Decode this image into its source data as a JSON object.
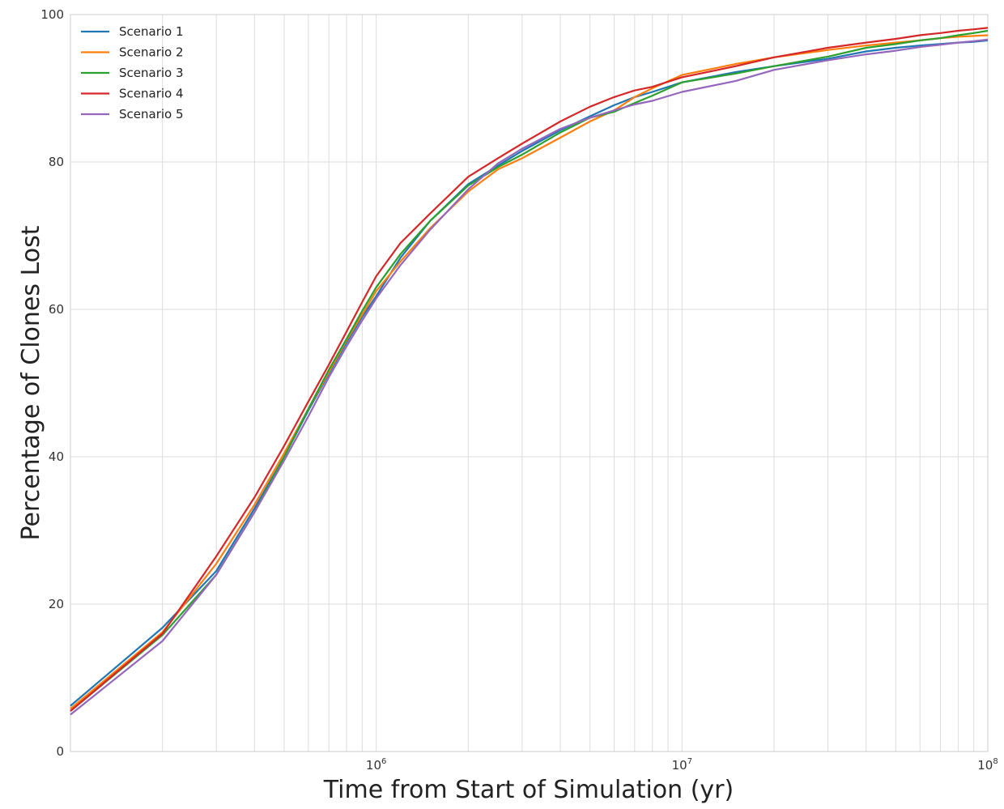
{
  "chart_data": {
    "type": "line",
    "title": "",
    "xlabel": "Time from Start of Simulation (yr)",
    "ylabel": "Percentage of Clones Lost",
    "x_scale": "log",
    "xlim": [
      100000,
      100000000
    ],
    "ylim": [
      0,
      100
    ],
    "x_ticks": [
      {
        "value": 1000000,
        "base": "10",
        "exp": "6"
      },
      {
        "value": 10000000,
        "base": "10",
        "exp": "7"
      },
      {
        "value": 100000000,
        "base": "10",
        "exp": "8"
      }
    ],
    "y_ticks": [
      {
        "value": 0,
        "label": "0"
      },
      {
        "value": 20,
        "label": "20"
      },
      {
        "value": 40,
        "label": "40"
      },
      {
        "value": 60,
        "label": "60"
      },
      {
        "value": 80,
        "label": "80"
      },
      {
        "value": 100,
        "label": "100"
      }
    ],
    "grid": true,
    "legend_position": "top-left",
    "x": [
      100000,
      200000,
      300000,
      400000,
      500000,
      600000,
      700000,
      800000,
      900000,
      1000000,
      1200000,
      1500000,
      2000000,
      2500000,
      3000000,
      4000000,
      5000000,
      6000000,
      7000000,
      8000000,
      10000000,
      15000000,
      20000000,
      30000000,
      40000000,
      50000000,
      60000000,
      70000000,
      80000000,
      90000000,
      100000000
    ],
    "series": [
      {
        "name": "Scenario 1",
        "color": "#1f77b4",
        "values": [
          6.2,
          16.8,
          24.5,
          33.0,
          40.0,
          46.3,
          51.3,
          55.5,
          59.0,
          61.8,
          67.0,
          72.0,
          77.0,
          79.5,
          81.5,
          84.3,
          86.2,
          87.7,
          88.8,
          89.5,
          90.8,
          92.2,
          93.0,
          94.0,
          95.0,
          95.5,
          95.8,
          96.0,
          96.2,
          96.3,
          96.5
        ]
      },
      {
        "name": "Scenario 2",
        "color": "#ff7f0e",
        "values": [
          5.8,
          16.2,
          25.5,
          33.5,
          40.5,
          46.5,
          51.5,
          55.8,
          59.3,
          62.5,
          66.5,
          71.0,
          76.0,
          79.0,
          80.5,
          83.3,
          85.5,
          87.0,
          88.8,
          90.0,
          91.8,
          93.3,
          94.2,
          95.2,
          95.8,
          96.2,
          96.5,
          96.8,
          97.0,
          97.1,
          97.2
        ]
      },
      {
        "name": "Scenario 3",
        "color": "#2ca02c",
        "values": [
          5.5,
          15.8,
          24.0,
          32.5,
          40.0,
          46.5,
          51.8,
          56.0,
          59.8,
          63.0,
          67.5,
          72.0,
          76.8,
          79.3,
          81.0,
          84.0,
          86.0,
          86.8,
          88.0,
          89.0,
          90.8,
          92.0,
          93.0,
          94.3,
          95.5,
          96.0,
          96.5,
          96.8,
          97.2,
          97.5,
          97.8
        ]
      },
      {
        "name": "Scenario 4",
        "color": "#d62728",
        "values": [
          5.5,
          16.0,
          26.5,
          34.5,
          41.5,
          47.5,
          52.5,
          57.0,
          61.0,
          64.5,
          69.0,
          73.0,
          78.0,
          80.5,
          82.5,
          85.5,
          87.5,
          88.8,
          89.7,
          90.2,
          91.5,
          93.0,
          94.2,
          95.5,
          96.2,
          96.7,
          97.2,
          97.5,
          97.8,
          98.0,
          98.2
        ]
      },
      {
        "name": "Scenario 5",
        "color": "#9467bd",
        "values": [
          5.0,
          15.0,
          24.0,
          32.5,
          39.5,
          45.5,
          50.8,
          55.0,
          58.5,
          61.5,
          66.0,
          70.8,
          76.3,
          79.8,
          81.8,
          84.5,
          86.0,
          87.0,
          87.8,
          88.3,
          89.5,
          91.0,
          92.5,
          93.8,
          94.6,
          95.1,
          95.6,
          95.9,
          96.2,
          96.4,
          96.6
        ]
      }
    ]
  }
}
